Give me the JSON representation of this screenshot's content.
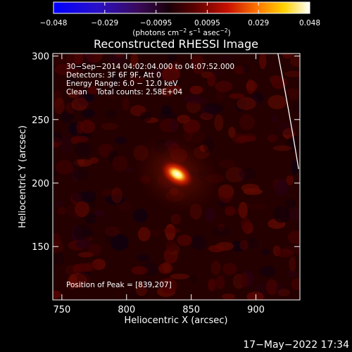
{
  "chart_data": {
    "type": "heatmap",
    "title": "Reconstructed RHESSI Image",
    "xlabel": "Heliocentric X (arcsec)",
    "ylabel": "Heliocentric Y (arcsec)",
    "xlim": [
      743,
      934
    ],
    "ylim": [
      108,
      302
    ],
    "x_ticks": [
      "750",
      "800",
      "850",
      "900"
    ],
    "y_ticks": [
      "150",
      "200",
      "250",
      "300"
    ],
    "colorbar": {
      "ticks": [
        "−0.048",
        "−0.029",
        "−0.0095",
        "0.0095",
        "0.029",
        "0.048"
      ],
      "label_prefix": "(photons cm",
      "label_exp1": "−2",
      "label_mid": " s",
      "label_exp2": "−1",
      "label_mid2": " asec",
      "label_exp3": "−2",
      "label_suffix": ")",
      "range": [
        -0.048,
        0.048
      ],
      "colormap": "black-blue-purple-red-orange-yellow-white"
    },
    "annotations": [
      "30−Sep−2014 04:02:04.000 to 04:07:52.000",
      "Detectors: 3F 6F 9F, Att 0",
      "Energy Range: 6.0 − 12.0 keV",
      "Clean    Total counts: 2.58E+04"
    ],
    "peak_label": "Position of Peak = [839,207]",
    "peak": {
      "x": 839,
      "y": 207,
      "value": 0.048
    },
    "limb_curve": [
      [
        917,
        302
      ],
      [
        926,
        255
      ],
      [
        933,
        211
      ]
    ],
    "grid": false
  },
  "footer": {
    "timestamp": "17−May−2022 17:34"
  }
}
